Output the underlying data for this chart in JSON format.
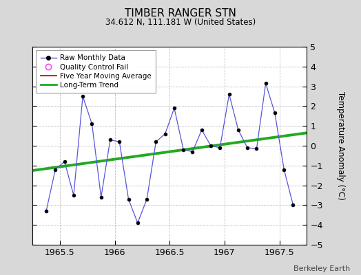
{
  "title": "TIMBER RANGER STN",
  "subtitle": "34.612 N, 111.181 W (United States)",
  "ylabel": "Temperature Anomaly (°C)",
  "watermark": "Berkeley Earth",
  "xlim": [
    1965.25,
    1967.75
  ],
  "ylim": [
    -5,
    5
  ],
  "xticks": [
    1965.5,
    1966.0,
    1966.5,
    1967.0,
    1967.5
  ],
  "xtick_labels": [
    "1965.5",
    "1966",
    "1966.5",
    "1967",
    "1967.5"
  ],
  "yticks": [
    -5,
    -4,
    -3,
    -2,
    -1,
    0,
    1,
    2,
    3,
    4,
    5
  ],
  "bg_color": "#d8d8d8",
  "plot_bg_color": "#ffffff",
  "raw_x": [
    1965.375,
    1965.458,
    1965.542,
    1965.625,
    1965.708,
    1965.792,
    1965.875,
    1965.958,
    1966.042,
    1966.125,
    1966.208,
    1966.292,
    1966.375,
    1966.458,
    1966.542,
    1966.625,
    1966.708,
    1966.792,
    1966.875,
    1966.958,
    1967.042,
    1967.125,
    1967.208,
    1967.292,
    1967.375,
    1967.458,
    1967.542,
    1967.625
  ],
  "raw_y": [
    -3.3,
    -1.2,
    -0.8,
    -2.5,
    2.5,
    1.1,
    -2.6,
    0.3,
    0.2,
    -2.7,
    -3.9,
    -2.7,
    0.2,
    0.6,
    1.9,
    -0.2,
    -0.3,
    0.8,
    0.0,
    -0.1,
    2.6,
    0.8,
    -0.1,
    -0.15,
    3.15,
    1.65,
    -1.2,
    -3.0
  ],
  "trend_x": [
    1965.25,
    1967.75
  ],
  "trend_y": [
    -1.25,
    0.65
  ],
  "raw_line_color": "#5555dd",
  "raw_marker_color": "#000000",
  "trend_color": "#22aa22",
  "moving_avg_color": "#ee1111",
  "qc_marker_color": "#ff44ff"
}
